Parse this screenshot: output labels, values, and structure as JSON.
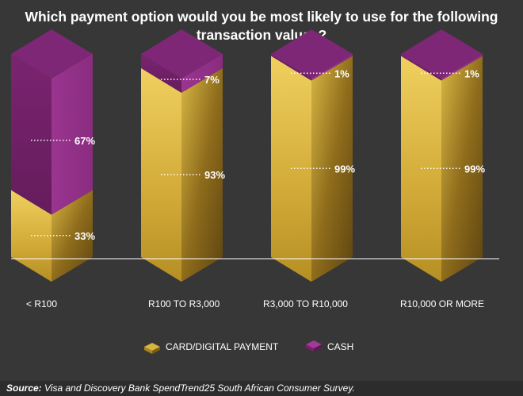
{
  "title": "Which payment option would you be most likely to use for the following transaction values?",
  "source_label": "Source:",
  "source_text": " Visa and Discovery Bank SpendTrend25 South African Consumer Survey.",
  "colors": {
    "background": "#373737",
    "card": "#d8b33c",
    "cash": "#8a2b7e"
  },
  "chart_data": {
    "type": "bar",
    "stacked": true,
    "style": "3d-column",
    "categories": [
      "< R100",
      "R100 TO R3,000",
      "R3,000 TO R10,000",
      "R10,000 OR MORE"
    ],
    "series": [
      {
        "name": "CARD/DIGITAL PAYMENT",
        "values": [
          33,
          93,
          99,
          99
        ],
        "labels": [
          "33%",
          "93%",
          "99%",
          "99%"
        ]
      },
      {
        "name": "CASH",
        "values": [
          67,
          7,
          1,
          1
        ],
        "labels": [
          "67%",
          "7%",
          "1%",
          "1%"
        ]
      }
    ],
    "unit": "%",
    "ylim": [
      0,
      100
    ],
    "legend_position": "bottom",
    "grid": false
  }
}
